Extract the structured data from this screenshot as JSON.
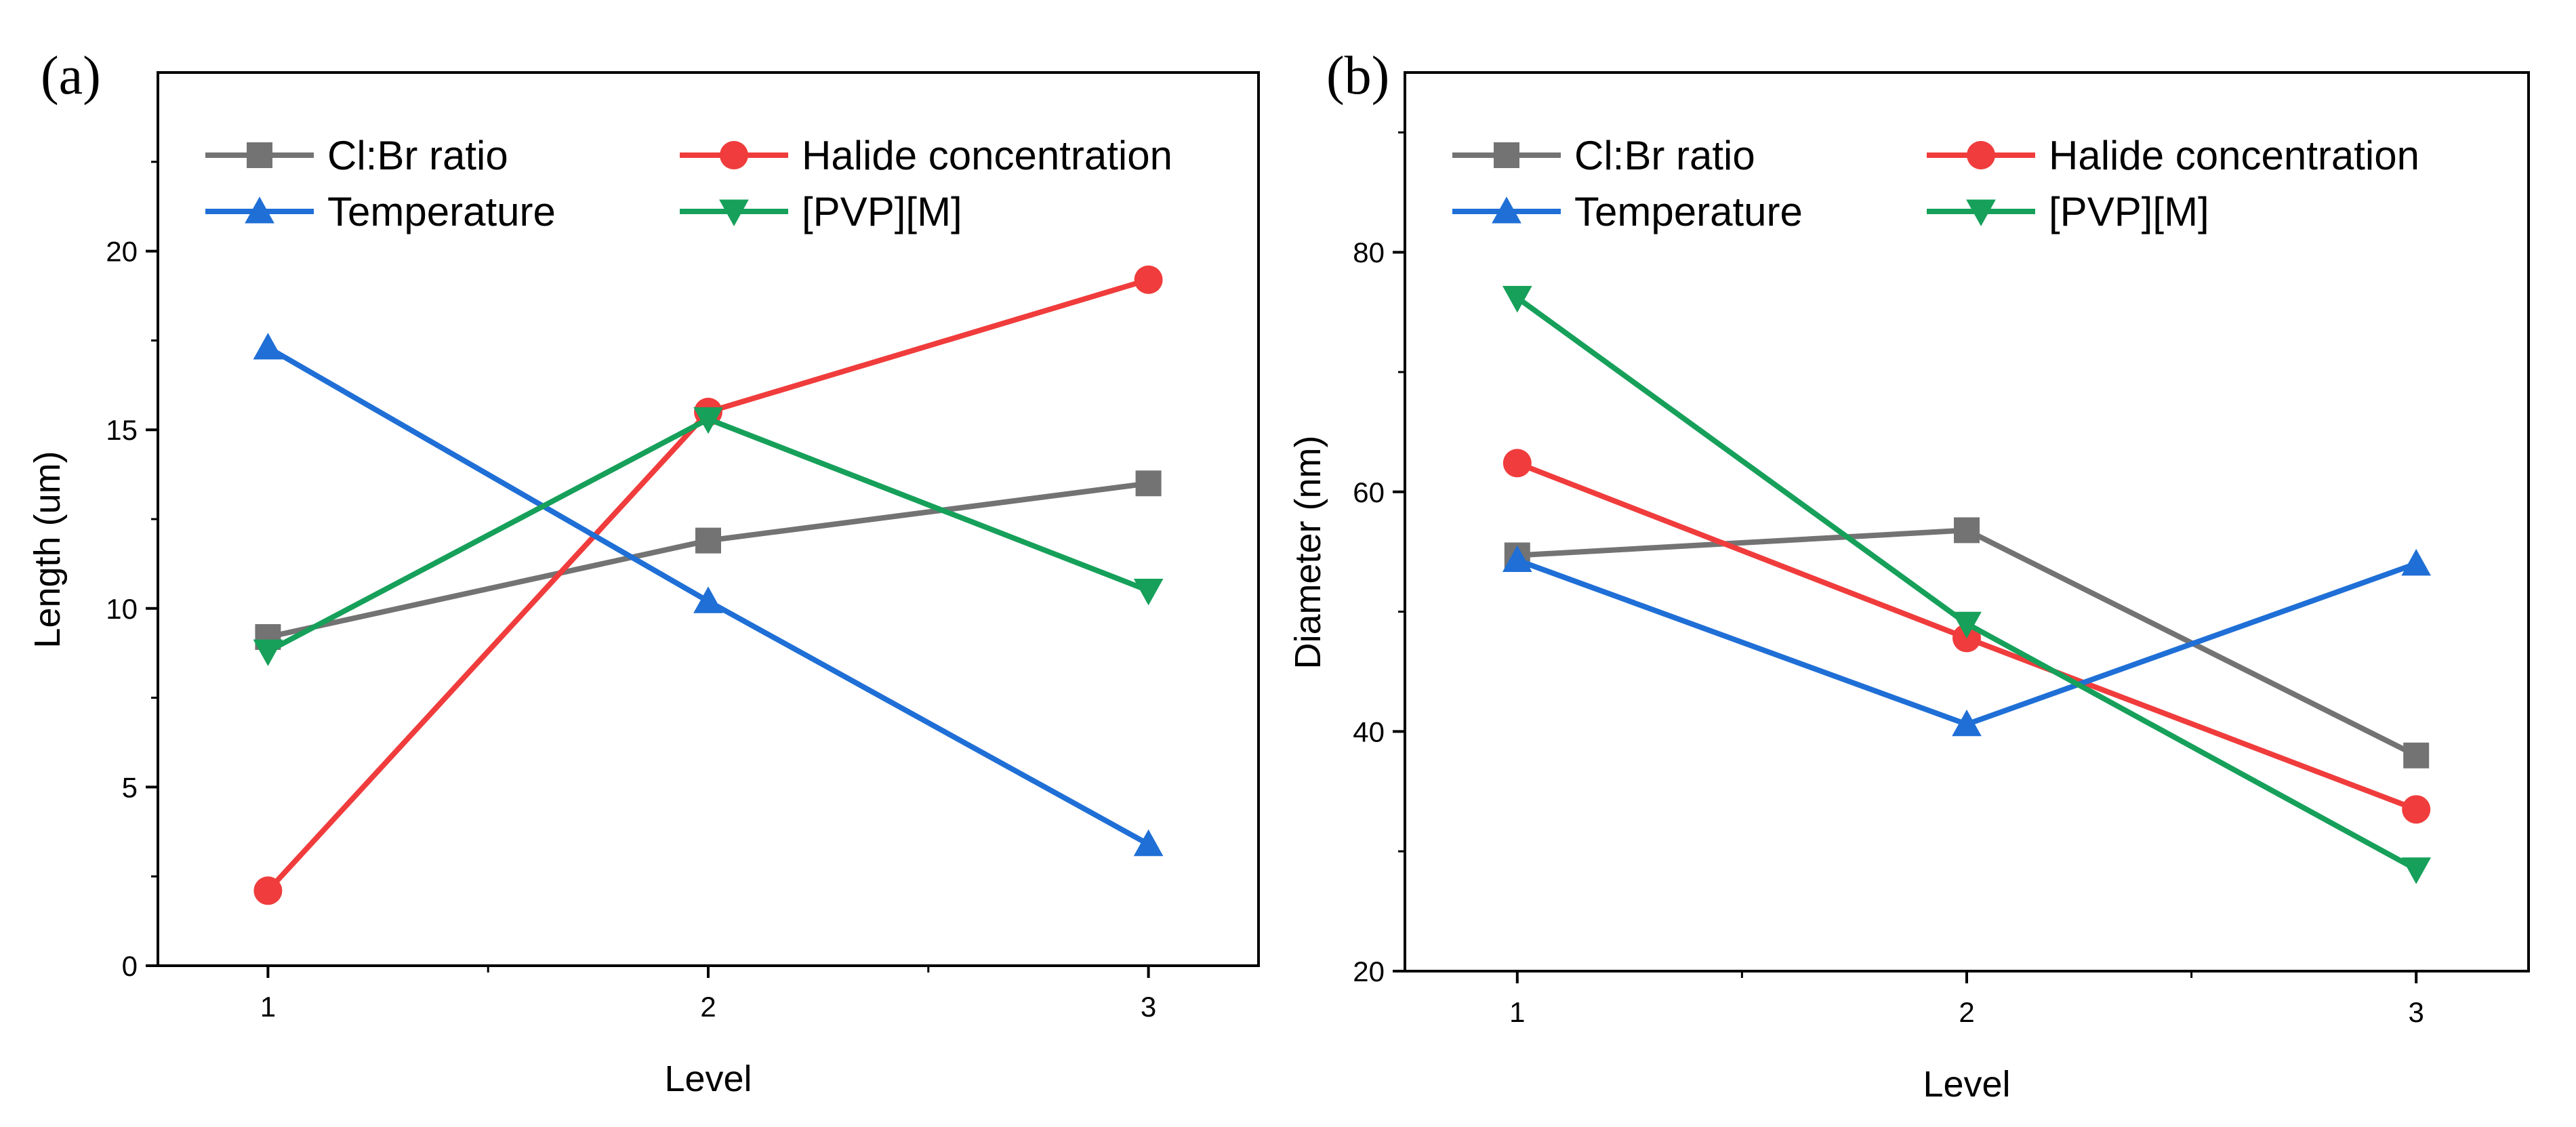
{
  "colors": {
    "Cl:Br ratio": "#737373",
    "Halide concentration": "#f03c3c",
    "Temperature": "#1f6fd6",
    "[PVP][M]": "#16a05a"
  },
  "markers": {
    "Cl:Br ratio": "square",
    "Halide concentration": "circle",
    "Temperature": "triangle-up",
    "[PVP][M]": "triangle-down"
  },
  "chart_data": [
    {
      "type": "line",
      "panel_label": "(a)",
      "xlabel": "Level",
      "ylabel": "Length (um)",
      "x": [
        1,
        2,
        3
      ],
      "xticks": [
        "1",
        "2",
        "3"
      ],
      "xlim": [
        0.75,
        3.25
      ],
      "ylim": [
        0,
        25
      ],
      "yticks": [
        "0",
        "5",
        "10",
        "15",
        "20"
      ],
      "legend_placement": "top",
      "series": [
        {
          "name": "Cl:Br ratio",
          "values": [
            9.2,
            11.9,
            13.5
          ]
        },
        {
          "name": "Halide concentration",
          "values": [
            2.1,
            15.5,
            19.2
          ]
        },
        {
          "name": "Temperature",
          "values": [
            17.3,
            10.2,
            3.4
          ]
        },
        {
          "name": "[PVP][M]",
          "values": [
            8.8,
            15.3,
            10.5
          ]
        }
      ]
    },
    {
      "type": "line",
      "panel_label": "(b)",
      "xlabel": "Level",
      "ylabel": "Diameter (nm)",
      "x": [
        1,
        2,
        3
      ],
      "xticks": [
        "1",
        "2",
        "3"
      ],
      "xlim": [
        0.75,
        3.25
      ],
      "ylim": [
        20,
        95
      ],
      "yticks": [
        "20",
        "40",
        "60",
        "80"
      ],
      "legend_placement": "top",
      "series": [
        {
          "name": "Cl:Br ratio",
          "values": [
            54.7,
            56.8,
            38.0
          ]
        },
        {
          "name": "Halide concentration",
          "values": [
            62.4,
            47.8,
            33.5
          ]
        },
        {
          "name": "Temperature",
          "values": [
            54.3,
            40.6,
            54.0
          ]
        },
        {
          "name": "[PVP][M]",
          "values": [
            76.2,
            49.0,
            28.5
          ]
        }
      ]
    }
  ]
}
